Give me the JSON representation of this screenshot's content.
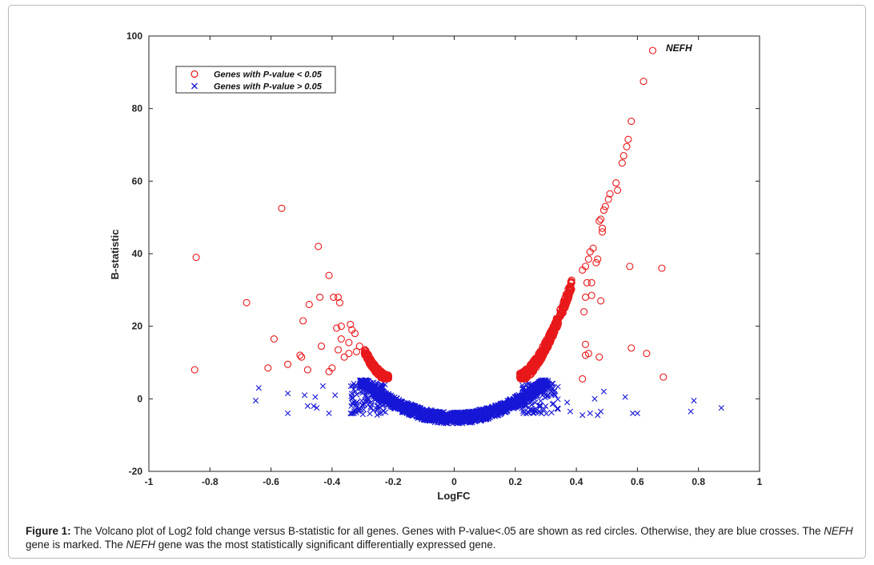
{
  "chart_data": {
    "type": "scatter",
    "xlabel": "LogFC",
    "ylabel": "B-statistic",
    "xlim": [
      -1,
      1
    ],
    "ylim": [
      -20,
      100
    ],
    "xticks": [
      "-1",
      "-0.8",
      "-0.6",
      "-0.4",
      "-0.2",
      "0",
      "0.2",
      "0.4",
      "0.6",
      "0.8",
      "1"
    ],
    "yticks": [
      "-20",
      "0",
      "20",
      "40",
      "60",
      "80",
      "100"
    ],
    "grid": false,
    "legend_position": "top-left",
    "colors": {
      "significant": "#e8191b",
      "not_significant": "#1717d6"
    },
    "series": [
      {
        "name": "Genes with P-value < 0.05",
        "marker": "circle",
        "color": "#e8191b",
        "points": [
          [
            0.65,
            96
          ],
          [
            0.62,
            87.5
          ],
          [
            0.58,
            76.5
          ],
          [
            0.57,
            71.5
          ],
          [
            0.565,
            69.5
          ],
          [
            0.555,
            67
          ],
          [
            0.55,
            65
          ],
          [
            0.53,
            59.5
          ],
          [
            0.535,
            57.5
          ],
          [
            0.51,
            56.5
          ],
          [
            0.505,
            55
          ],
          [
            0.495,
            53
          ],
          [
            0.49,
            52
          ],
          [
            0.48,
            49.5
          ],
          [
            0.475,
            49
          ],
          [
            0.485,
            47
          ],
          [
            0.485,
            46
          ],
          [
            0.455,
            41.5
          ],
          [
            0.445,
            40.5
          ],
          [
            0.47,
            38.5
          ],
          [
            0.44,
            38.5
          ],
          [
            0.465,
            37.5
          ],
          [
            0.43,
            36.5
          ],
          [
            0.42,
            35.5
          ],
          [
            0.45,
            32
          ],
          [
            0.435,
            32
          ],
          [
            0.48,
            27
          ],
          [
            0.45,
            28.5
          ],
          [
            0.43,
            28
          ],
          [
            0.425,
            24
          ],
          [
            0.43,
            15
          ],
          [
            0.44,
            12.5
          ],
          [
            0.475,
            11.5
          ],
          [
            0.43,
            12
          ],
          [
            0.42,
            5.5
          ],
          [
            0.575,
            36.5
          ],
          [
            0.68,
            36
          ],
          [
            0.58,
            14
          ],
          [
            0.63,
            12.5
          ],
          [
            0.685,
            6
          ],
          [
            -0.845,
            39
          ],
          [
            -0.85,
            8
          ],
          [
            -0.68,
            26.5
          ],
          [
            -0.59,
            16.5
          ],
          [
            -0.61,
            8.5
          ],
          [
            -0.565,
            52.5
          ],
          [
            -0.545,
            9.5
          ],
          [
            -0.505,
            12
          ],
          [
            -0.5,
            11.5
          ],
          [
            -0.495,
            21.5
          ],
          [
            -0.48,
            8
          ],
          [
            -0.475,
            26
          ],
          [
            -0.44,
            28
          ],
          [
            -0.445,
            42
          ],
          [
            -0.435,
            14.5
          ],
          [
            -0.41,
            34
          ],
          [
            -0.41,
            7.5
          ],
          [
            -0.4,
            8.5
          ],
          [
            -0.395,
            28
          ],
          [
            -0.38,
            28
          ],
          [
            -0.375,
            26.5
          ],
          [
            -0.385,
            19.5
          ],
          [
            -0.37,
            20
          ],
          [
            -0.37,
            16.5
          ],
          [
            -0.38,
            13.5
          ],
          [
            -0.34,
            20.5
          ],
          [
            -0.335,
            19
          ],
          [
            -0.325,
            18
          ],
          [
            -0.345,
            15.5
          ],
          [
            -0.345,
            12.5
          ],
          [
            -0.36,
            11.5
          ],
          [
            -0.32,
            13
          ],
          [
            -0.31,
            14.5
          ]
        ]
      },
      {
        "name": "Genes with P-value > 0.05",
        "marker": "cross",
        "color": "#1717d6",
        "points": [
          [
            -0.65,
            -0.5
          ],
          [
            -0.64,
            3
          ],
          [
            -0.545,
            1.5
          ],
          [
            -0.545,
            -4
          ],
          [
            -0.49,
            1
          ],
          [
            -0.48,
            -2
          ],
          [
            -0.46,
            -2
          ],
          [
            -0.455,
            0.5
          ],
          [
            -0.45,
            -2.5
          ],
          [
            -0.43,
            3.5
          ],
          [
            -0.41,
            -4
          ],
          [
            -0.39,
            1
          ],
          [
            0.49,
            2
          ],
          [
            0.56,
            0.5
          ],
          [
            0.585,
            -4
          ],
          [
            0.6,
            -4
          ],
          [
            0.775,
            -3.5
          ],
          [
            0.785,
            -0.5
          ],
          [
            0.875,
            -2.5
          ],
          [
            0.42,
            -4.5
          ],
          [
            0.445,
            -4
          ],
          [
            0.47,
            -4.5
          ],
          [
            0.48,
            -3.5
          ],
          [
            0.46,
            0
          ],
          [
            0.38,
            -3.5
          ],
          [
            0.37,
            -1
          ]
        ]
      }
    ],
    "annotations": [
      {
        "text": "NEFH",
        "x": 0.65,
        "y": 96
      }
    ]
  },
  "caption": {
    "label": "Figure 1:",
    "part1": " The Volcano plot of Log2 fold change versus B-statistic for all genes. Genes with P-value<.05 are shown as red circles. Otherwise, they are blue crosses. The ",
    "gene1": "NEFH",
    "part2": " gene is marked. The ",
    "gene2": "NEFH",
    "part3": " gene was the most statistically significant differentially expressed gene."
  }
}
